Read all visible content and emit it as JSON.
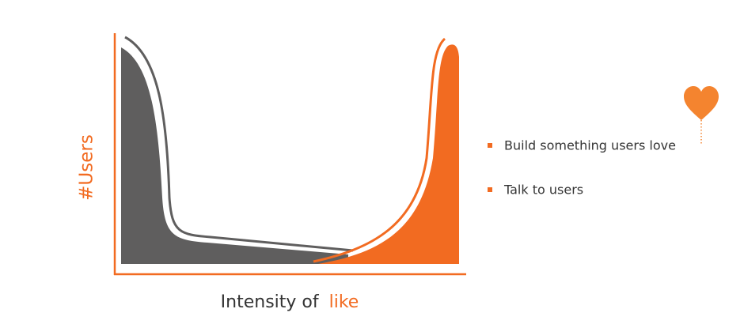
{
  "axes": {
    "y_label": "#Users",
    "x_label": {
      "prefix": "Intensity of",
      "highlight": "like"
    }
  },
  "bullets": [
    "Build something users love",
    "Talk to users"
  ]
}
